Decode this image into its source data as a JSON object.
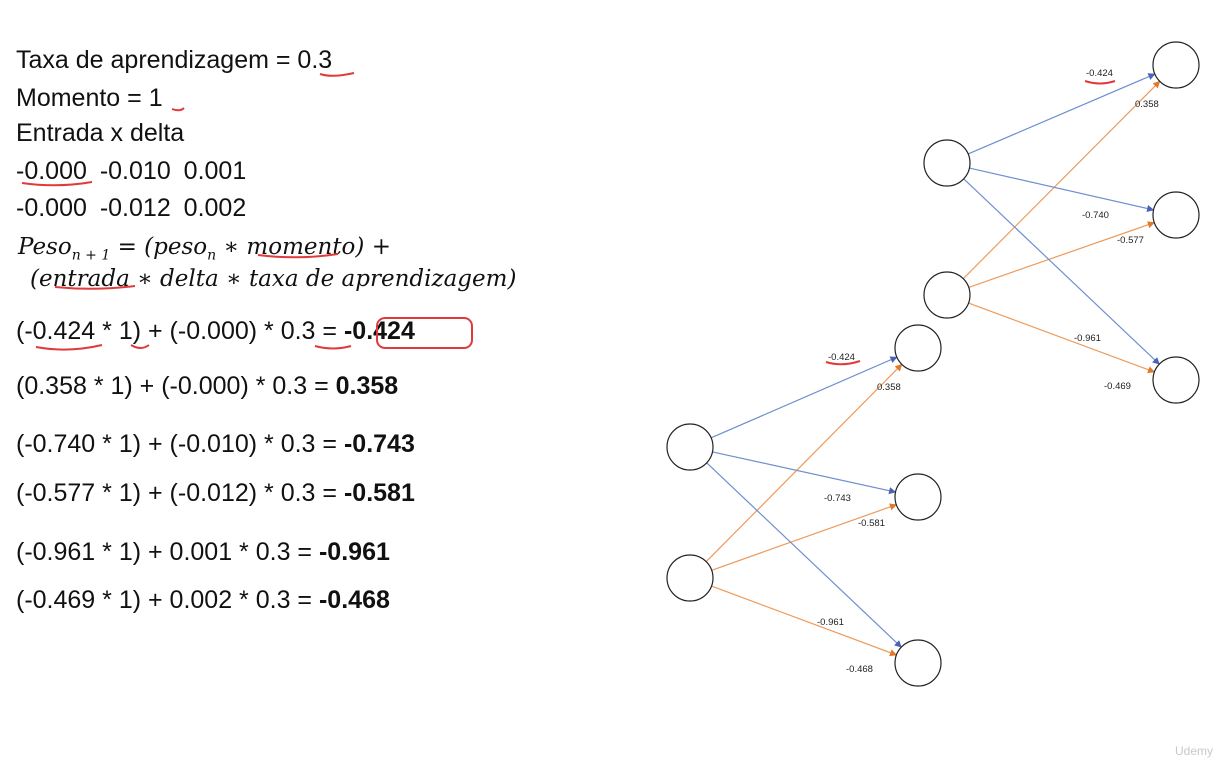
{
  "params": {
    "learning_rate": "Taxa de aprendizagem = 0.3",
    "momentum": "Momento = 1",
    "input_delta_title": "Entrada x delta",
    "row1": "-0.000  -0.010  0.001",
    "row2": "-0.000  -0.012  0.002"
  },
  "formula": {
    "line1_a": "Peso",
    "line1_sub": "n + 1",
    "line1_b": " = (peso",
    "line1_sub2": "n",
    "line1_c": " ∗ momento) +",
    "line2": "(entrada ∗ delta ∗ taxa de aprendizagem)"
  },
  "calculations": [
    {
      "expr": "(-0.424 * 1) + (-0.000) * 0.3 = ",
      "result": "-0.424"
    },
    {
      "expr": "(0.358 * 1) + (-0.000) * 0.3 = ",
      "result": "0.358"
    },
    {
      "expr": "(-0.740 * 1) + (-0.010) * 0.3 = ",
      "result": "-0.743"
    },
    {
      "expr": "(-0.577 * 1) + (-0.012) * 0.3 = ",
      "result": "-0.581"
    },
    {
      "expr": "(-0.961 * 1) + 0.001 * 0.3 = ",
      "result": "-0.961"
    },
    {
      "expr": "(-0.469 * 1) + 0.002 * 0.3 = ",
      "result": "-0.468"
    }
  ],
  "network_old": {
    "weights": [
      "-0.424",
      "0.358",
      "-0.740",
      "-0.577",
      "-0.961",
      "-0.469"
    ]
  },
  "network_new": {
    "weights": [
      "-0.424",
      "0.358",
      "-0.743",
      "-0.581",
      "-0.961",
      "-0.468"
    ]
  },
  "colors": {
    "blue_edge": "#6f8fd0",
    "orange_edge": "#ee9a5a",
    "ink_red": "#e03a3a"
  },
  "watermark": "Udemy"
}
